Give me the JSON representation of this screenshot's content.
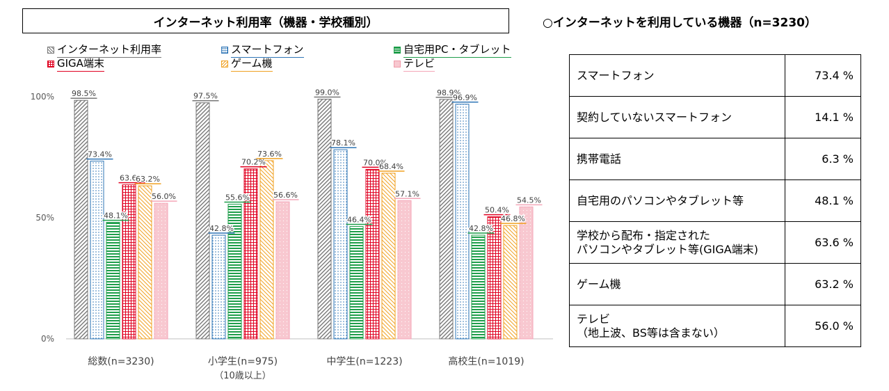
{
  "left_title": "インターネット利用率（機器・学校種別）",
  "right_title": "○インターネットを利用している機器（n=3230）",
  "chart_data": {
    "type": "bar",
    "title": "インターネット利用率（機器・学校種別）",
    "ylim": [
      0,
      100
    ],
    "yticks": [
      "0%",
      "50%",
      "100%"
    ],
    "categories": [
      "総数(n=3230)",
      "小学生(n=975)",
      "中学生(n=1223)",
      "高校生(n=1019)"
    ],
    "category_sublabels": [
      "",
      "（10歳以上）",
      "",
      ""
    ],
    "series": [
      {
        "name": "インターネット利用率",
        "key": "gray",
        "color": "#777777",
        "values": [
          98.5,
          97.5,
          99.0,
          98.9
        ],
        "labels": [
          "98.5%",
          "97.5%",
          "99.0%",
          "98.9%"
        ]
      },
      {
        "name": "スマートフォン",
        "key": "blue",
        "color": "#2e75b6",
        "values": [
          73.4,
          42.8,
          78.1,
          96.9
        ],
        "labels": [
          "73.4%",
          "42.8%",
          "78.1%",
          "96.9%"
        ]
      },
      {
        "name": "自宅用PC・タブレット",
        "key": "green",
        "color": "#1e9e4a",
        "values": [
          48.1,
          55.6,
          46.4,
          42.8
        ],
        "labels": [
          "48.1%",
          "55.6%",
          "46.4%",
          "42.8%"
        ]
      },
      {
        "name": "GIGA端末",
        "key": "red",
        "color": "#e00020",
        "values": [
          63.6,
          70.2,
          70.0,
          50.4
        ],
        "labels": [
          "63.6%",
          "70.2%",
          "70.0%",
          "50.4%"
        ]
      },
      {
        "name": "ゲーム機",
        "key": "orange",
        "color": "#f0a020",
        "values": [
          63.2,
          73.6,
          68.4,
          46.8
        ],
        "labels": [
          "63.2%",
          "73.6%",
          "68.4%",
          "46.8%"
        ]
      },
      {
        "name": "テレビ",
        "key": "pink",
        "color": "#f4a6b8",
        "values": [
          56.0,
          56.6,
          57.1,
          54.5
        ],
        "labels": [
          "56.0%",
          "56.6%",
          "57.1%",
          "54.5%"
        ]
      }
    ]
  },
  "device_table": [
    {
      "label": "スマートフォン",
      "sublabel": "",
      "value": "73.4 %"
    },
    {
      "label": "契約していないスマートフォン",
      "sublabel": "",
      "value": "14.1 %"
    },
    {
      "label": "携帯電話",
      "sublabel": "",
      "value": "6.3 %"
    },
    {
      "label": "自宅用のパソコンやタブレット等",
      "sublabel": "",
      "value": "48.1 %"
    },
    {
      "label": "学校から配布・指定された",
      "sublabel": "パソコンやタブレット等(GIGA端末)",
      "value": "63.6 %"
    },
    {
      "label": "ゲーム機",
      "sublabel": "",
      "value": "63.2 %"
    },
    {
      "label": "テレビ",
      "sublabel": "（地上波、BS等は含まない）",
      "value": "56.0 %"
    }
  ]
}
